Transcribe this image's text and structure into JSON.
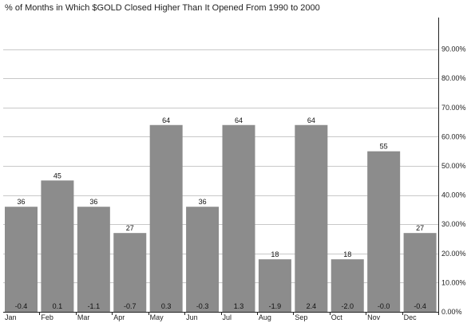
{
  "chart_data": {
    "type": "bar",
    "title": "% of Months in Which $GOLD Closed Higher Than It Opened From 1990 to 2000",
    "xlabel": "",
    "ylabel": "",
    "categories": [
      "Jan",
      "Feb",
      "Mar",
      "Apr",
      "May",
      "Jun",
      "Jul",
      "Aug",
      "Sep",
      "Oct",
      "Nov",
      "Dec"
    ],
    "series": [
      {
        "values": [
          36,
          45,
          36,
          27,
          64,
          36,
          64,
          18,
          64,
          18,
          55,
          27
        ]
      }
    ],
    "value_labels": [
      "36",
      "45",
      "36",
      "27",
      "64",
      "36",
      "64",
      "18",
      "64",
      "18",
      "55",
      "27"
    ],
    "bottom_labels": [
      "-0.4",
      "0.1",
      "-1.1",
      "-0.7",
      "0.3",
      "-0.3",
      "1.3",
      "-1.9",
      "2.4",
      "-2.0",
      "-0.0",
      "-0.4"
    ],
    "ylim": [
      0,
      100
    ],
    "yticks": [
      0,
      10,
      20,
      30,
      40,
      50,
      60,
      70,
      80,
      90
    ],
    "ytick_labels": [
      "0.00%",
      "10.00%",
      "20.00%",
      "30.00%",
      "40.00%",
      "50.00%",
      "60.00%",
      "70.00%",
      "80.00%",
      "90.00%"
    ],
    "y_axis_side": "right",
    "grid": true,
    "colors": {
      "bar": "#8c8c8c",
      "grid": "#c8c8c8",
      "axis": "#222222"
    }
  }
}
